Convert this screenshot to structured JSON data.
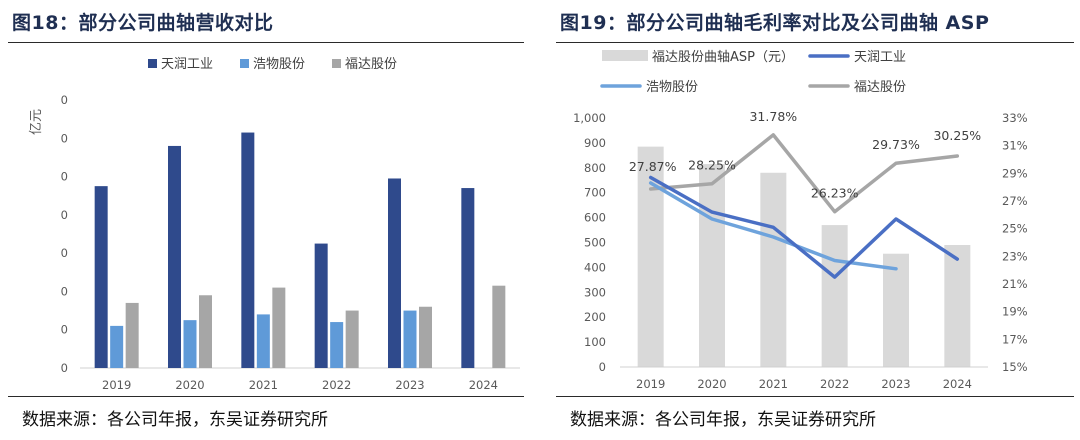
{
  "footer": {
    "source": "数据来源：各公司年报，东吴证券研究所"
  },
  "chart_data": [
    {
      "type": "bar",
      "title": "图18：部分公司曲轴营收对比",
      "ylabel": "亿元",
      "ytick_labels": [
        "0",
        "0",
        "0",
        "0",
        "0",
        "0",
        "0",
        "0"
      ],
      "ylim": [
        0,
        14
      ],
      "categories": [
        "2019",
        "2020",
        "2021",
        "2022",
        "2023",
        "2024"
      ],
      "series": [
        {
          "name": "天润工业",
          "color": "#2f4a8c",
          "values": [
            9.5,
            11.6,
            12.3,
            6.5,
            9.9,
            9.4
          ]
        },
        {
          "name": "浩物股份",
          "color": "#5f9ad8",
          "values": [
            2.2,
            2.5,
            2.8,
            2.4,
            3.0,
            null
          ]
        },
        {
          "name": "福达股份",
          "color": "#a6a6a6",
          "values": [
            3.4,
            3.8,
            4.2,
            3.0,
            3.2,
            4.3
          ]
        }
      ]
    },
    {
      "type": "bar+line",
      "title": "图19：部分公司曲轴毛利率对比及公司曲轴 ASP",
      "categories": [
        "2019",
        "2020",
        "2021",
        "2022",
        "2023",
        "2024"
      ],
      "y_left": {
        "ylim": [
          0,
          1000
        ],
        "ticks": [
          "0",
          "100",
          "200",
          "300",
          "400",
          "500",
          "600",
          "700",
          "800",
          "900",
          "1,000"
        ]
      },
      "y_right": {
        "ylim": [
          15,
          33
        ],
        "ticks": [
          "15%",
          "17%",
          "19%",
          "21%",
          "23%",
          "25%",
          "27%",
          "29%",
          "31%",
          "33%"
        ]
      },
      "bar_series": {
        "name": "福达股份曲轴ASP（元）",
        "color": "#d9d9d9",
        "values": [
          885,
          815,
          780,
          570,
          455,
          490
        ]
      },
      "line_series": [
        {
          "name": "天润工业",
          "color": "#4a6fc4",
          "values": [
            28.7,
            26.2,
            25.1,
            21.5,
            25.7,
            22.8
          ]
        },
        {
          "name": "浩物股份",
          "color": "#6ea3dc",
          "values": [
            28.3,
            25.7,
            24.4,
            22.7,
            22.1,
            null
          ]
        },
        {
          "name": "福达股份",
          "color": "#a6a6a6",
          "values": [
            27.87,
            28.25,
            31.78,
            26.23,
            29.73,
            30.25
          ],
          "labels": [
            "27.87%",
            "28.25%",
            "31.78%",
            "26.23%",
            "29.73%",
            "30.25%"
          ]
        }
      ]
    }
  ]
}
